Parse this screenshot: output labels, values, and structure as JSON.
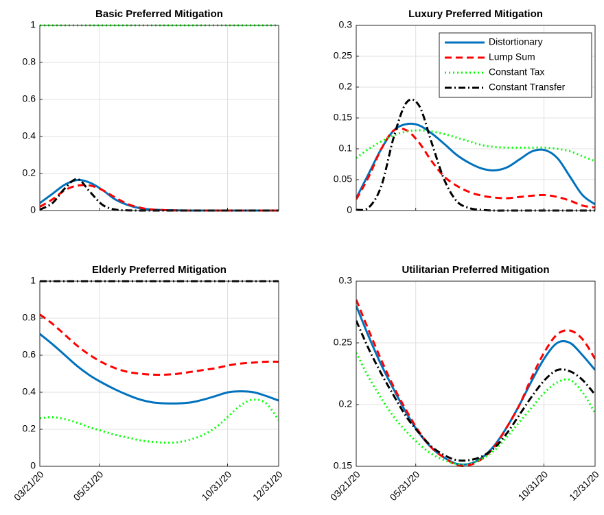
{
  "chart_data": [
    {
      "type": "line",
      "title": "Basic Preferred Mitigation",
      "x": [
        "03/21/20",
        "04/05/20",
        "04/20/20",
        "05/05/20",
        "05/20/20",
        "06/04/20",
        "06/19/20",
        "07/04/20",
        "07/19/20",
        "08/03/20",
        "08/18/20",
        "09/02/20",
        "09/17/20",
        "10/02/20",
        "10/17/20",
        "11/01/20",
        "11/16/20",
        "12/01/20",
        "12/16/20",
        "12/31/20"
      ],
      "xlim": [
        "03/21/20",
        "12/31/20"
      ],
      "xticks": [
        "03/21/20",
        "05/31/20",
        "10/31/20",
        "12/31/20"
      ],
      "xticklabels": false,
      "ylim": [
        0,
        1
      ],
      "yticks": [
        0,
        0.2,
        0.4,
        0.6,
        0.8,
        1
      ],
      "grid": true,
      "series": [
        {
          "color": "#0072bd",
          "style": "solid",
          "values": [
            0.04,
            0.09,
            0.14,
            0.165,
            0.15,
            0.11,
            0.06,
            0.03,
            0.012,
            0.005,
            0.002,
            0.001,
            0,
            0,
            0,
            0,
            0,
            0,
            0,
            0
          ]
        },
        {
          "color": "#ff0000",
          "style": "dashed",
          "values": [
            0.02,
            0.06,
            0.11,
            0.135,
            0.135,
            0.11,
            0.07,
            0.035,
            0.015,
            0.005,
            0.002,
            0,
            0,
            0,
            0,
            0,
            0,
            0,
            0,
            0
          ]
        },
        {
          "color": "#00ff00",
          "style": "dotted",
          "values": [
            1,
            1,
            1,
            1,
            1,
            1,
            1,
            1,
            1,
            1,
            1,
            1,
            1,
            1,
            1,
            1,
            1,
            1,
            1,
            1
          ]
        },
        {
          "color": "#000000",
          "style": "dashdot",
          "values": [
            0.005,
            0.04,
            0.12,
            0.17,
            0.1,
            0.03,
            0.005,
            0.001,
            0,
            0,
            0,
            0,
            0,
            0,
            0,
            0,
            0,
            0,
            0,
            0
          ]
        }
      ]
    },
    {
      "type": "line",
      "title": "Luxury Preferred Mitigation",
      "x": [
        "03/21/20",
        "04/05/20",
        "04/20/20",
        "05/05/20",
        "05/20/20",
        "06/04/20",
        "06/19/20",
        "07/04/20",
        "07/19/20",
        "08/03/20",
        "08/18/20",
        "09/02/20",
        "09/17/20",
        "10/02/20",
        "10/17/20",
        "11/01/20",
        "11/16/20",
        "12/01/20",
        "12/16/20",
        "12/31/20"
      ],
      "xlim": [
        "03/21/20",
        "12/31/20"
      ],
      "xticks": [
        "03/21/20",
        "05/31/20",
        "10/31/20",
        "12/31/20"
      ],
      "xticklabels": false,
      "ylim": [
        0,
        0.3
      ],
      "yticks": [
        0,
        0.05,
        0.1,
        0.15,
        0.2,
        0.25,
        0.3
      ],
      "grid": true,
      "legend": "upper right",
      "series": [
        {
          "name": "Distortionary",
          "color": "#0072bd",
          "style": "solid",
          "values": [
            0.02,
            0.06,
            0.1,
            0.13,
            0.14,
            0.138,
            0.125,
            0.108,
            0.09,
            0.077,
            0.068,
            0.065,
            0.07,
            0.083,
            0.096,
            0.098,
            0.085,
            0.055,
            0.025,
            0.01
          ]
        },
        {
          "name": "Lump Sum",
          "color": "#ff0000",
          "style": "dashed",
          "values": [
            0.018,
            0.055,
            0.1,
            0.13,
            0.13,
            0.11,
            0.08,
            0.055,
            0.04,
            0.03,
            0.024,
            0.021,
            0.02,
            0.022,
            0.024,
            0.025,
            0.022,
            0.016,
            0.008,
            0.005
          ]
        },
        {
          "name": "Constant Tax",
          "color": "#00ff00",
          "style": "dotted",
          "values": [
            0.085,
            0.1,
            0.112,
            0.122,
            0.128,
            0.13,
            0.128,
            0.124,
            0.118,
            0.112,
            0.106,
            0.103,
            0.102,
            0.102,
            0.102,
            0.102,
            0.1,
            0.096,
            0.088,
            0.08
          ]
        },
        {
          "name": "Constant Transfer",
          "color": "#000000",
          "style": "dashdot",
          "values": [
            0.001,
            0.005,
            0.04,
            0.12,
            0.175,
            0.17,
            0.11,
            0.05,
            0.015,
            0.004,
            0.001,
            0,
            0,
            0,
            0,
            0,
            0,
            0,
            0,
            0
          ]
        }
      ]
    },
    {
      "type": "line",
      "title": "Elderly Preferred Mitigation",
      "x": [
        "03/21/20",
        "04/05/20",
        "04/20/20",
        "05/05/20",
        "05/20/20",
        "06/04/20",
        "06/19/20",
        "07/04/20",
        "07/19/20",
        "08/03/20",
        "08/18/20",
        "09/02/20",
        "09/17/20",
        "10/02/20",
        "10/17/20",
        "11/01/20",
        "11/16/20",
        "12/01/20",
        "12/16/20",
        "12/31/20"
      ],
      "xlim": [
        "03/21/20",
        "12/31/20"
      ],
      "xticks": [
        "03/21/20",
        "05/31/20",
        "10/31/20",
        "12/31/20"
      ],
      "xticklabels": true,
      "ylim": [
        0,
        1
      ],
      "yticks": [
        0,
        0.2,
        0.4,
        0.6,
        0.8,
        1
      ],
      "grid": true,
      "series": [
        {
          "color": "#0072bd",
          "style": "solid",
          "values": [
            0.715,
            0.66,
            0.6,
            0.54,
            0.49,
            0.45,
            0.415,
            0.385,
            0.36,
            0.345,
            0.34,
            0.34,
            0.345,
            0.36,
            0.38,
            0.4,
            0.405,
            0.4,
            0.38,
            0.355
          ]
        },
        {
          "color": "#ff0000",
          "style": "dashed",
          "values": [
            0.82,
            0.77,
            0.71,
            0.65,
            0.6,
            0.56,
            0.53,
            0.51,
            0.5,
            0.495,
            0.495,
            0.5,
            0.51,
            0.52,
            0.53,
            0.545,
            0.555,
            0.56,
            0.565,
            0.565
          ]
        },
        {
          "color": "#00ff00",
          "style": "dotted",
          "values": [
            0.26,
            0.265,
            0.255,
            0.235,
            0.21,
            0.19,
            0.17,
            0.155,
            0.14,
            0.132,
            0.128,
            0.13,
            0.145,
            0.17,
            0.21,
            0.27,
            0.33,
            0.36,
            0.34,
            0.25
          ]
        },
        {
          "color": "#000000",
          "style": "dashdot",
          "values": [
            1,
            1,
            1,
            1,
            1,
            1,
            1,
            1,
            1,
            1,
            1,
            1,
            1,
            1,
            1,
            1,
            1,
            1,
            1,
            1
          ]
        }
      ]
    },
    {
      "type": "line",
      "title": "Utilitarian Preferred Mitigation",
      "x": [
        "03/21/20",
        "04/05/20",
        "04/20/20",
        "05/05/20",
        "05/20/20",
        "06/04/20",
        "06/19/20",
        "07/04/20",
        "07/19/20",
        "08/03/20",
        "08/18/20",
        "09/02/20",
        "09/17/20",
        "10/02/20",
        "10/17/20",
        "11/01/20",
        "11/16/20",
        "12/01/20",
        "12/16/20",
        "12/31/20"
      ],
      "xlim": [
        "03/21/20",
        "12/31/20"
      ],
      "xticks": [
        "03/21/20",
        "05/31/20",
        "10/31/20",
        "12/31/20"
      ],
      "xticklabels": true,
      "ylim": [
        0.15,
        0.3
      ],
      "yticks": [
        0.15,
        0.2,
        0.25,
        0.3
      ],
      "grid": true,
      "series": [
        {
          "color": "#0072bd",
          "style": "solid",
          "values": [
            0.28,
            0.255,
            0.232,
            0.212,
            0.193,
            0.177,
            0.165,
            0.157,
            0.152,
            0.152,
            0.157,
            0.167,
            0.182,
            0.2,
            0.22,
            0.238,
            0.25,
            0.25,
            0.24,
            0.228
          ]
        },
        {
          "color": "#ff0000",
          "style": "dashed",
          "values": [
            0.285,
            0.26,
            0.236,
            0.214,
            0.195,
            0.178,
            0.165,
            0.157,
            0.151,
            0.151,
            0.156,
            0.166,
            0.182,
            0.2,
            0.223,
            0.243,
            0.257,
            0.26,
            0.253,
            0.237
          ]
        },
        {
          "color": "#00ff00",
          "style": "dotted",
          "values": [
            0.242,
            0.222,
            0.205,
            0.19,
            0.178,
            0.168,
            0.16,
            0.155,
            0.152,
            0.152,
            0.156,
            0.163,
            0.174,
            0.186,
            0.198,
            0.21,
            0.218,
            0.22,
            0.21,
            0.193
          ]
        },
        {
          "color": "#000000",
          "style": "dashdot",
          "values": [
            0.268,
            0.245,
            0.225,
            0.207,
            0.19,
            0.177,
            0.166,
            0.159,
            0.155,
            0.155,
            0.158,
            0.165,
            0.177,
            0.192,
            0.207,
            0.22,
            0.228,
            0.227,
            0.22,
            0.208
          ]
        }
      ]
    }
  ]
}
